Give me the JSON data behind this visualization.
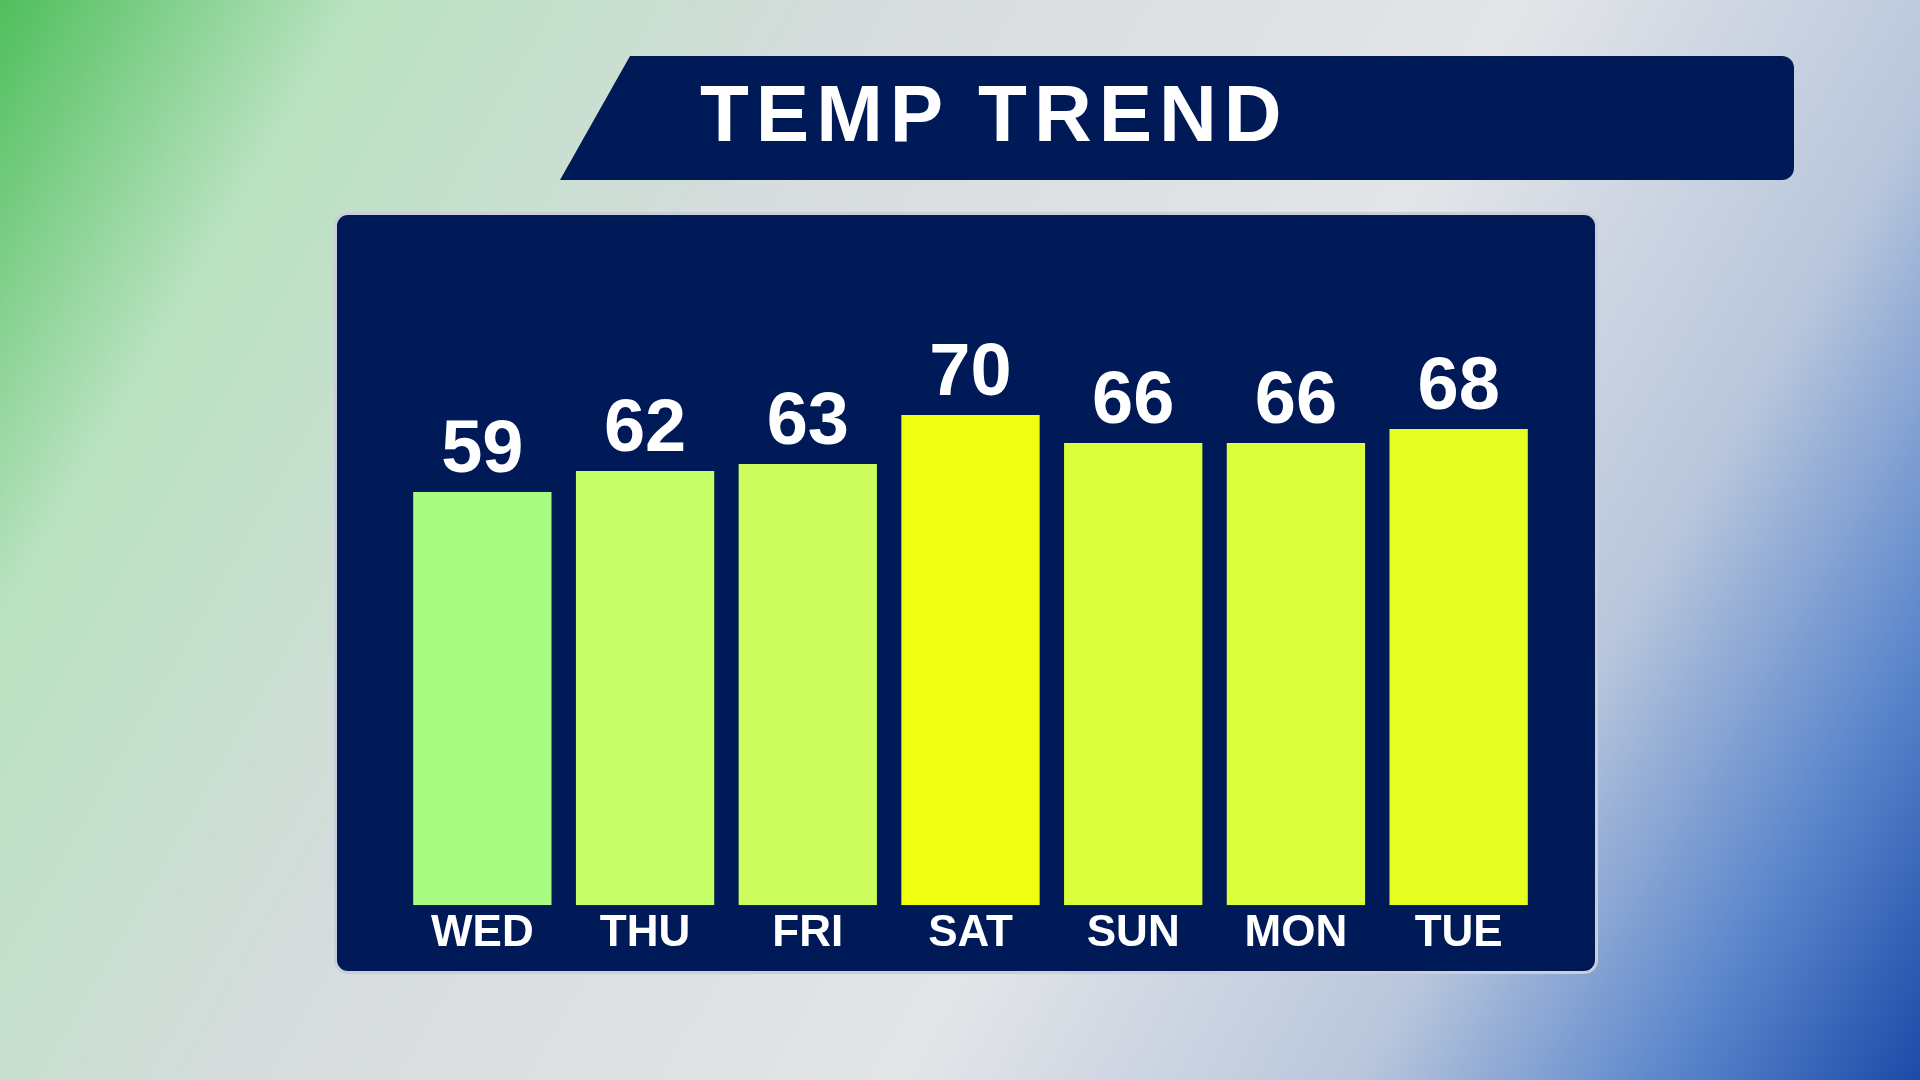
{
  "chart_data": {
    "type": "bar",
    "title": "TEMP TREND",
    "categories": [
      "WED",
      "THU",
      "FRI",
      "SAT",
      "SUN",
      "MON",
      "TUE"
    ],
    "values": [
      59,
      62,
      63,
      70,
      66,
      66,
      68
    ],
    "colors": [
      "#a8fc82",
      "#c4fd66",
      "#ccfd5c",
      "#eeff11",
      "#dbff3a",
      "#dbff3a",
      "#e5ff22"
    ],
    "data_labels": true,
    "tick_labels": "x"
  }
}
